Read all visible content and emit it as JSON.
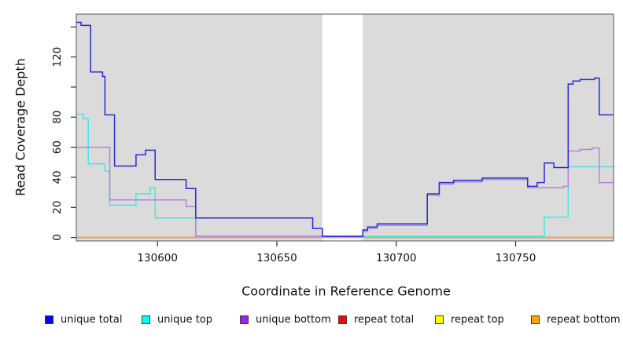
{
  "figure": {
    "background": "#FFFFFF"
  },
  "chart_data": {
    "type": "line",
    "subtype": "step-coverage-plot",
    "title": "",
    "xlabel": "Coordinate in Reference Genome",
    "ylabel": "Read Coverage Depth",
    "xlim": [
      130566,
      130791
    ],
    "ylim": [
      -2.3,
      148.5
    ],
    "plot_bg": "#DBDBDB",
    "frame_color": "#6E6E6E",
    "tick_color": "#1A1A1A",
    "gap_region": {
      "from": 130669,
      "to": 130686,
      "fill": "#FFFFFF"
    },
    "x_ticks": [
      {
        "v": 130600,
        "label": "130600"
      },
      {
        "v": 130650,
        "label": "130650"
      },
      {
        "v": 130700,
        "label": "130700"
      },
      {
        "v": 130750,
        "label": "130750"
      }
    ],
    "y_ticks": [
      {
        "v": 0,
        "label": "0"
      },
      {
        "v": 20,
        "label": "20"
      },
      {
        "v": 40,
        "label": "40"
      },
      {
        "v": 60,
        "label": "60"
      },
      {
        "v": 80,
        "label": "80"
      },
      {
        "v": 100,
        "label": ""
      },
      {
        "v": 120,
        "label": "120"
      },
      {
        "v": 140,
        "label": ""
      }
    ],
    "series": [
      {
        "id": "repeat-top",
        "name": "repeat top",
        "color": "#FFFF00",
        "steps": [
          [
            130566,
            0
          ]
        ]
      },
      {
        "id": "repeat-total",
        "name": "repeat total",
        "color": "#E03030",
        "steps": [
          [
            130566,
            0
          ]
        ]
      },
      {
        "id": "repeat-bottom",
        "name": "repeat bottom",
        "color": "#FF9D1E",
        "steps": [
          [
            130566,
            0
          ]
        ]
      },
      {
        "id": "unique-top",
        "name": "unique top",
        "color": "#4CE4E0",
        "steps": [
          [
            130566,
            82
          ],
          [
            130569,
            79
          ],
          [
            130571,
            49
          ],
          [
            130578,
            44
          ],
          [
            130580,
            21.5
          ],
          [
            130591,
            29
          ],
          [
            130597,
            33
          ],
          [
            130599,
            13
          ],
          [
            130616,
            0.8
          ],
          [
            130762,
            13.5
          ],
          [
            130772,
            47
          ]
        ]
      },
      {
        "id": "unique-bottom",
        "name": "unique bottom",
        "color": "#BA7FDC",
        "steps": [
          [
            130566,
            60
          ],
          [
            130580,
            25
          ],
          [
            130612,
            20.5
          ],
          [
            130616,
            0.8
          ],
          [
            130686,
            4
          ],
          [
            130688,
            6
          ],
          [
            130692,
            8
          ],
          [
            130713,
            28
          ],
          [
            130718,
            35.5
          ],
          [
            130724,
            37
          ],
          [
            130736,
            38.5
          ],
          [
            130755,
            33
          ],
          [
            130770,
            34
          ],
          [
            130772,
            57.5
          ],
          [
            130777,
            58.5
          ],
          [
            130782,
            59.5
          ],
          [
            130785,
            36.5
          ]
        ]
      },
      {
        "id": "unique-total",
        "name": "unique total",
        "color": "#2A2AD6",
        "steps": [
          [
            130566,
            143
          ],
          [
            130568,
            141
          ],
          [
            130572,
            110
          ],
          [
            130577,
            107
          ],
          [
            130578,
            81.5
          ],
          [
            130582,
            47.5
          ],
          [
            130591,
            55
          ],
          [
            130595,
            58
          ],
          [
            130599,
            38.5
          ],
          [
            130612,
            32.5
          ],
          [
            130616,
            13
          ],
          [
            130665,
            6
          ],
          [
            130669,
            0.8
          ],
          [
            130686,
            5
          ],
          [
            130688,
            7
          ],
          [
            130692,
            9
          ],
          [
            130713,
            29
          ],
          [
            130718,
            36.5
          ],
          [
            130724,
            38
          ],
          [
            130736,
            39.5
          ],
          [
            130755,
            34
          ],
          [
            130759,
            36.5
          ],
          [
            130762,
            49.5
          ],
          [
            130766,
            46.5
          ],
          [
            130772,
            102
          ],
          [
            130774,
            104
          ],
          [
            130777,
            105
          ],
          [
            130783,
            106
          ],
          [
            130785,
            81.5
          ]
        ]
      }
    ],
    "legend": {
      "items": [
        {
          "label": "unique total",
          "color": "#0000FF"
        },
        {
          "label": "unique top",
          "color": "#00FFFF"
        },
        {
          "label": "unique bottom",
          "color": "#A020F0"
        },
        {
          "label": "repeat total",
          "color": "#FF0000"
        },
        {
          "label": "repeat top",
          "color": "#FFFF00"
        },
        {
          "label": "repeat bottom",
          "color": "#FFA500"
        }
      ]
    }
  }
}
